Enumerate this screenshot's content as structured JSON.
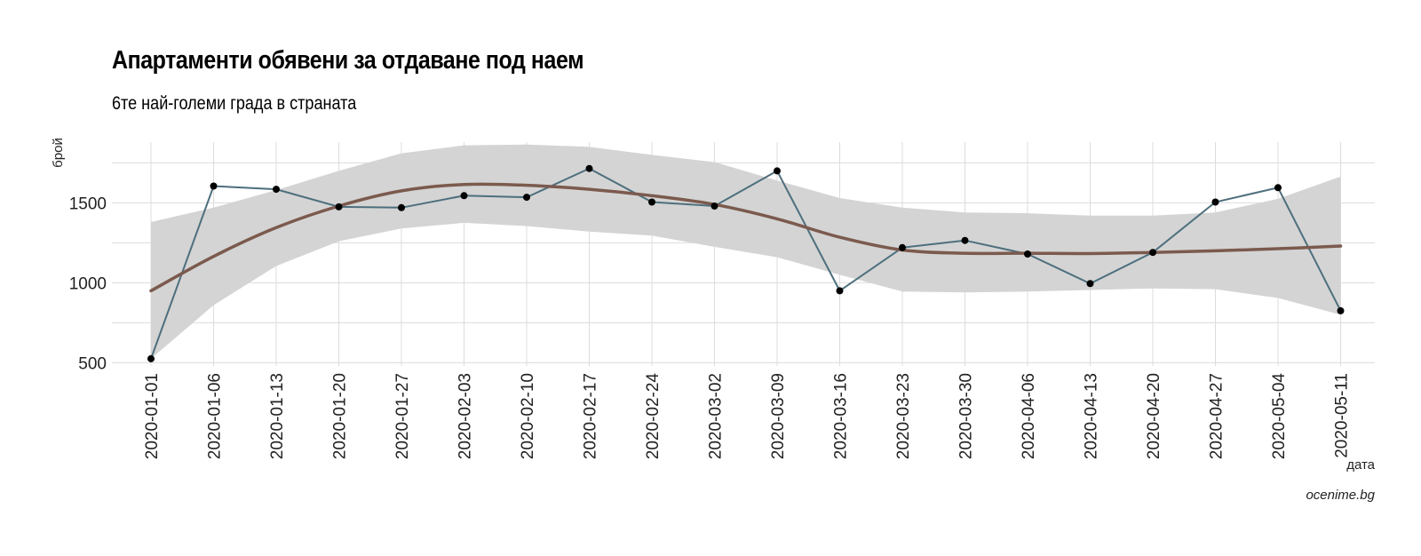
{
  "chart_data": {
    "type": "line",
    "title": "Апартаменти обявени за отдаване под наем",
    "subtitle": "6те най-големи града в страната",
    "xlabel": "дата",
    "ylabel": "брой",
    "caption": "ocenime.bg",
    "ylim": [
      480,
      1880
    ],
    "yticks": [
      500,
      1000,
      1500
    ],
    "grid": true,
    "x": [
      "2020-01-01",
      "2020-01-06",
      "2020-01-13",
      "2020-01-20",
      "2020-01-27",
      "2020-02-03",
      "2020-02-10",
      "2020-02-17",
      "2020-02-24",
      "2020-03-02",
      "2020-03-09",
      "2020-03-16",
      "2020-03-23",
      "2020-03-30",
      "2020-04-06",
      "2020-04-13",
      "2020-04-20",
      "2020-04-27",
      "2020-05-04",
      "2020-05-11"
    ],
    "series": [
      {
        "values": [
          525,
          1605,
          1585,
          1475,
          1470,
          1545,
          1535,
          1715,
          1505,
          1480,
          1700,
          950,
          1220,
          1265,
          1180,
          995,
          1190,
          1505,
          1595,
          825
        ]
      }
    ],
    "smooth": {
      "fit": [
        950,
        1165,
        1345,
        1480,
        1575,
        1615,
        1610,
        1585,
        1545,
        1490,
        1400,
        1285,
        1205,
        1185,
        1185,
        1183,
        1190,
        1200,
        1213,
        1230
      ],
      "lower": [
        525,
        860,
        1105,
        1260,
        1340,
        1375,
        1355,
        1320,
        1295,
        1225,
        1160,
        1050,
        945,
        940,
        945,
        955,
        965,
        960,
        905,
        800
      ],
      "upper": [
        1380,
        1470,
        1580,
        1700,
        1810,
        1860,
        1865,
        1850,
        1800,
        1755,
        1640,
        1530,
        1470,
        1440,
        1435,
        1420,
        1420,
        1440,
        1525,
        1665
      ]
    },
    "colors": {
      "line": "#4d6f7d",
      "smooth": "#7b5a4e",
      "band": "#d4d4d4",
      "points": "#000000",
      "grid": "#dcdcdc"
    }
  }
}
